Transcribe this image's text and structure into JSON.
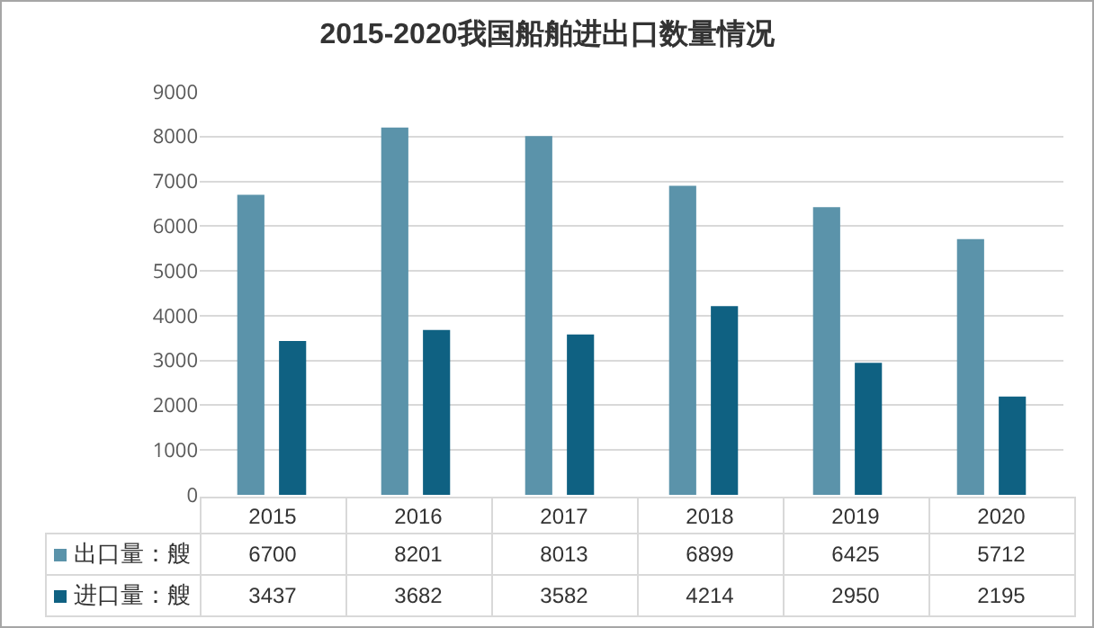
{
  "chart_data": {
    "type": "bar",
    "title": "2015-2020我国船舶进出口数量情况",
    "categories": [
      "2015",
      "2016",
      "2017",
      "2018",
      "2019",
      "2020"
    ],
    "series": [
      {
        "name": "出口量：艘",
        "color": "#5b93aa",
        "values": [
          6700,
          8201,
          8013,
          6899,
          6425,
          5712
        ]
      },
      {
        "name": "进口量：艘",
        "color": "#0f6182",
        "values": [
          3437,
          3682,
          3582,
          4214,
          2950,
          2195
        ]
      }
    ],
    "ylim": [
      0,
      9000
    ],
    "yticks": [
      0,
      1000,
      2000,
      3000,
      4000,
      5000,
      6000,
      7000,
      8000,
      9000
    ],
    "grid": "y",
    "legend": "bottom",
    "data_labels": true
  }
}
